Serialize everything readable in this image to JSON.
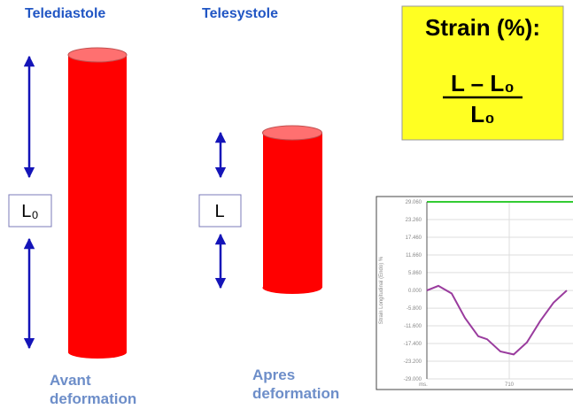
{
  "left_title": "Telediastole",
  "right_title": "Telesystole",
  "box": {
    "title": "Strain (%):",
    "numerator": "L – L₀",
    "denominator": "L₀"
  },
  "left_length_label": "L₀",
  "right_length_label": "L",
  "left_caption": [
    "Avant",
    "deformation"
  ],
  "right_caption": [
    "Apres",
    "deformation"
  ],
  "chart_data": {
    "type": "line",
    "ylabel": "Strain Longitudinal (Endo) %",
    "xlabel": "ms.",
    "x": [
      0,
      99,
      214,
      328,
      443,
      519,
      634,
      748,
      863,
      977,
      1092,
      1206
    ],
    "values": [
      0,
      1.5,
      -1,
      -9,
      -15,
      -16,
      -20,
      -21,
      -17,
      -10,
      -4,
      0
    ],
    "color": "#9a3c9e",
    "xlim": [
      0,
      1300
    ],
    "xticks": [
      710
    ],
    "ylim": [
      -29,
      29.06
    ],
    "yticks": [
      {
        "value": 29.06,
        "label": "29.060"
      },
      {
        "value": 23.26,
        "label": "23.260"
      },
      {
        "value": 17.46,
        "label": "17.460"
      },
      {
        "value": 11.66,
        "label": "11.660"
      },
      {
        "value": 5.86,
        "label": "5.860"
      },
      {
        "value": 0,
        "label": "0.000"
      },
      {
        "value": -5.8,
        "label": "-5.800"
      },
      {
        "value": -11.6,
        "label": "-11.600"
      },
      {
        "value": -17.4,
        "label": "-17.400"
      },
      {
        "value": -23.2,
        "label": "-23.200"
      },
      {
        "value": -29,
        "label": "-29.000"
      }
    ],
    "grid": true
  }
}
